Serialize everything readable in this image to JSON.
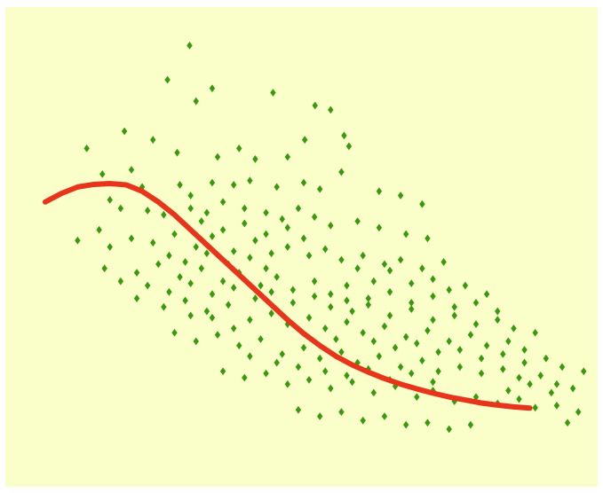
{
  "chart_data": {
    "type": "scatter",
    "title": "",
    "xlabel": "",
    "ylabel": "",
    "xlim": [
      0,
      100
    ],
    "ylim": [
      0,
      100
    ],
    "grid": false,
    "legend": "none",
    "background_color": "#FAFEC8",
    "point_color": "#3A9A0E",
    "trend_color": "#E8341A",
    "series": [
      {
        "kind": "points",
        "values_xy": [
          [
            26.8,
            96.0
          ],
          [
            22.7,
            88.0
          ],
          [
            31.0,
            86.0
          ],
          [
            42.3,
            85.0
          ],
          [
            50.1,
            82.0
          ],
          [
            53.0,
            81.0
          ],
          [
            28.0,
            83.0
          ],
          [
            14.7,
            76.0
          ],
          [
            7.7,
            72.0
          ],
          [
            48.2,
            74.0
          ],
          [
            55.5,
            75.0
          ],
          [
            56.4,
            72.5
          ],
          [
            20.0,
            74.0
          ],
          [
            24.5,
            71.0
          ],
          [
            32.0,
            70.0
          ],
          [
            36.0,
            72.0
          ],
          [
            39.0,
            69.5
          ],
          [
            45.0,
            70.0
          ],
          [
            16.0,
            67.0
          ],
          [
            10.6,
            66.0
          ],
          [
            18.0,
            63.0
          ],
          [
            25.0,
            63.5
          ],
          [
            31.0,
            64.0
          ],
          [
            35.0,
            63.5
          ],
          [
            38.0,
            64.5
          ],
          [
            43.0,
            63.0
          ],
          [
            48.0,
            64.0
          ],
          [
            51.0,
            62.5
          ],
          [
            55.0,
            66.5
          ],
          [
            62.0,
            62.0
          ],
          [
            66.0,
            61.0
          ],
          [
            70.0,
            59.0
          ],
          [
            12.0,
            60.0
          ],
          [
            14.0,
            58.0
          ],
          [
            19.0,
            57.5
          ],
          [
            22.0,
            56.5
          ],
          [
            27.0,
            58.0
          ],
          [
            30.0,
            57.0
          ],
          [
            33.0,
            59.5
          ],
          [
            37.0,
            58.0
          ],
          [
            41.0,
            57.0
          ],
          [
            44.0,
            55.5
          ],
          [
            47.0,
            58.0
          ],
          [
            50.0,
            56.0
          ],
          [
            53.0,
            54.0
          ],
          [
            58.0,
            55.0
          ],
          [
            62.0,
            53.5
          ],
          [
            67.0,
            52.0
          ],
          [
            71.0,
            51.0
          ],
          [
            10.0,
            53.0
          ],
          [
            12.0,
            49.0
          ],
          [
            6.0,
            50.5
          ],
          [
            16.0,
            51.0
          ],
          [
            20.0,
            50.0
          ],
          [
            24.0,
            52.0
          ],
          [
            28.0,
            49.0
          ],
          [
            31.0,
            51.5
          ],
          [
            35.0,
            48.0
          ],
          [
            39.0,
            50.5
          ],
          [
            42.0,
            47.5
          ],
          [
            45.0,
            49.0
          ],
          [
            49.0,
            47.0
          ],
          [
            52.0,
            48.5
          ],
          [
            55.0,
            46.0
          ],
          [
            59.0,
            47.0
          ],
          [
            63.0,
            45.0
          ],
          [
            66.0,
            46.0
          ],
          [
            70.0,
            44.0
          ],
          [
            74.0,
            45.5
          ],
          [
            11.0,
            44.0
          ],
          [
            14.0,
            41.0
          ],
          [
            17.0,
            43.0
          ],
          [
            21.0,
            45.0
          ],
          [
            25.0,
            42.0
          ],
          [
            29.0,
            44.0
          ],
          [
            33.0,
            41.0
          ],
          [
            36.0,
            43.0
          ],
          [
            40.0,
            40.0
          ],
          [
            43.0,
            42.0
          ],
          [
            46.0,
            39.0
          ],
          [
            50.0,
            41.0
          ],
          [
            53.0,
            38.0
          ],
          [
            56.0,
            40.0
          ],
          [
            60.0,
            37.0
          ],
          [
            64.0,
            38.5
          ],
          [
            68.0,
            36.0
          ],
          [
            72.0,
            37.5
          ],
          [
            76.0,
            35.0
          ],
          [
            80.0,
            36.0
          ],
          [
            84.0,
            34.0
          ],
          [
            17.0,
            37.0
          ],
          [
            22.0,
            35.0
          ],
          [
            26.0,
            36.5
          ],
          [
            30.0,
            34.0
          ],
          [
            34.0,
            35.5
          ],
          [
            38.0,
            32.0
          ],
          [
            42.0,
            33.5
          ],
          [
            45.0,
            31.0
          ],
          [
            49.0,
            32.5
          ],
          [
            52.0,
            30.0
          ],
          [
            56.0,
            31.5
          ],
          [
            59.0,
            29.0
          ],
          [
            63.0,
            30.5
          ],
          [
            67.0,
            28.0
          ],
          [
            71.0,
            29.5
          ],
          [
            75.0,
            27.0
          ],
          [
            79.0,
            28.5
          ],
          [
            82.0,
            26.0
          ],
          [
            86.0,
            27.0
          ],
          [
            89.0,
            25.0
          ],
          [
            24.0,
            29.0
          ],
          [
            28.0,
            27.0
          ],
          [
            32.0,
            28.5
          ],
          [
            36.0,
            26.0
          ],
          [
            40.0,
            27.5
          ],
          [
            44.0,
            24.0
          ],
          [
            48.0,
            25.5
          ],
          [
            51.0,
            23.0
          ],
          [
            55.0,
            24.5
          ],
          [
            58.0,
            22.0
          ],
          [
            62.0,
            23.5
          ],
          [
            66.0,
            21.0
          ],
          [
            70.0,
            22.5
          ],
          [
            73.0,
            20.0
          ],
          [
            77.0,
            21.0
          ],
          [
            81.0,
            19.5
          ],
          [
            85.0,
            20.5
          ],
          [
            88.0,
            18.5
          ],
          [
            92.0,
            19.0
          ],
          [
            95.0,
            17.0
          ],
          [
            98.0,
            16.0
          ],
          [
            33.0,
            20.0
          ],
          [
            37.0,
            18.5
          ],
          [
            41.0,
            19.5
          ],
          [
            45.0,
            17.0
          ],
          [
            49.0,
            18.0
          ],
          [
            53.0,
            16.0
          ],
          [
            57.0,
            17.5
          ],
          [
            61.0,
            15.0
          ],
          [
            65.0,
            16.5
          ],
          [
            69.0,
            14.0
          ],
          [
            72.0,
            15.5
          ],
          [
            76.0,
            13.0
          ],
          [
            80.0,
            14.0
          ],
          [
            84.0,
            12.5
          ],
          [
            88.0,
            13.5
          ],
          [
            91.0,
            11.5
          ],
          [
            95.0,
            12.0
          ],
          [
            99.0,
            10.5
          ],
          [
            47.0,
            11.0
          ],
          [
            51.0,
            9.5
          ],
          [
            55.0,
            10.5
          ],
          [
            59.0,
            8.5
          ],
          [
            63.0,
            9.5
          ],
          [
            67.0,
            7.5
          ],
          [
            71.0,
            8.0
          ],
          [
            75.0,
            6.5
          ],
          [
            79.0,
            7.5
          ],
          [
            97.0,
            8.0
          ],
          [
            94.0,
            15.0
          ],
          [
            90.0,
            17.0
          ],
          [
            86.0,
            15.5
          ],
          [
            58.0,
            44.0
          ],
          [
            61.0,
            41.0
          ],
          [
            64.0,
            43.5
          ],
          [
            68.0,
            40.5
          ],
          [
            72.0,
            41.5
          ],
          [
            75.0,
            39.0
          ],
          [
            78.0,
            40.0
          ],
          [
            82.0,
            38.0
          ],
          [
            57.0,
            34.0
          ],
          [
            60.0,
            35.5
          ],
          [
            64.0,
            33.0
          ],
          [
            68.0,
            34.5
          ],
          [
            72.0,
            32.0
          ],
          [
            76.0,
            33.0
          ],
          [
            80.0,
            31.0
          ],
          [
            84.0,
            32.0
          ],
          [
            87.0,
            30.0
          ],
          [
            91.0,
            29.0
          ],
          [
            39.0,
            37.0
          ],
          [
            42.0,
            38.5
          ],
          [
            46.0,
            36.0
          ],
          [
            50.0,
            37.5
          ],
          [
            53.0,
            35.0
          ],
          [
            56.0,
            36.5
          ],
          [
            61.0,
            27.0
          ],
          [
            65.0,
            25.5
          ],
          [
            69.0,
            26.5
          ],
          [
            73.0,
            24.5
          ],
          [
            77.0,
            25.0
          ],
          [
            81.0,
            23.0
          ],
          [
            85.0,
            24.0
          ],
          [
            89.0,
            22.0
          ],
          [
            93.0,
            23.0
          ],
          [
            96.0,
            21.0
          ],
          [
            100.0,
            20.0
          ],
          [
            27.0,
            61.0
          ],
          [
            29.0,
            55.0
          ],
          [
            33.0,
            53.0
          ],
          [
            37.0,
            54.5
          ],
          [
            41.0,
            52.0
          ],
          [
            45.0,
            53.5
          ],
          [
            48.0,
            51.0
          ],
          [
            23.0,
            47.0
          ],
          [
            26.0,
            45.5
          ],
          [
            30.0,
            47.5
          ],
          [
            34.0,
            45.0
          ],
          [
            38.0,
            46.5
          ],
          [
            41.0,
            44.0
          ],
          [
            19.0,
            40.0
          ],
          [
            23.0,
            38.5
          ],
          [
            27.0,
            40.5
          ],
          [
            31.0,
            38.0
          ],
          [
            35.0,
            39.5
          ],
          [
            54.0,
            27.5
          ],
          [
            52.0,
            20.0
          ],
          [
            56.0,
            19.0
          ],
          [
            60.0,
            20.5
          ],
          [
            64.0,
            18.0
          ],
          [
            68.0,
            19.5
          ],
          [
            72.0,
            17.5
          ],
          [
            43.0,
            22.0
          ],
          [
            47.0,
            21.0
          ],
          [
            38.0,
            23.5
          ],
          [
            35.0,
            30.0
          ],
          [
            31.0,
            32.5
          ],
          [
            27.0,
            33.0
          ]
        ]
      },
      {
        "kind": "trend",
        "values_xy": [
          [
            0,
            59.5
          ],
          [
            3,
            61.5
          ],
          [
            6,
            63.0
          ],
          [
            9,
            63.6
          ],
          [
            12,
            63.8
          ],
          [
            15,
            63.5
          ],
          [
            18,
            62.0
          ],
          [
            21,
            59.5
          ],
          [
            24,
            56.5
          ],
          [
            27,
            53.0
          ],
          [
            30,
            49.5
          ],
          [
            33,
            46.0
          ],
          [
            36,
            42.5
          ],
          [
            39,
            39.0
          ],
          [
            42,
            35.5
          ],
          [
            45,
            32.0
          ],
          [
            48,
            28.8
          ],
          [
            51,
            26.0
          ],
          [
            54,
            23.5
          ],
          [
            57,
            21.5
          ],
          [
            60,
            19.8
          ],
          [
            63,
            18.3
          ],
          [
            66,
            17.0
          ],
          [
            69,
            15.9
          ],
          [
            72,
            14.9
          ],
          [
            75,
            14.0
          ],
          [
            78,
            13.3
          ],
          [
            81,
            12.6
          ],
          [
            84,
            12.1
          ],
          [
            87,
            11.7
          ],
          [
            90,
            11.4
          ]
        ]
      }
    ]
  }
}
